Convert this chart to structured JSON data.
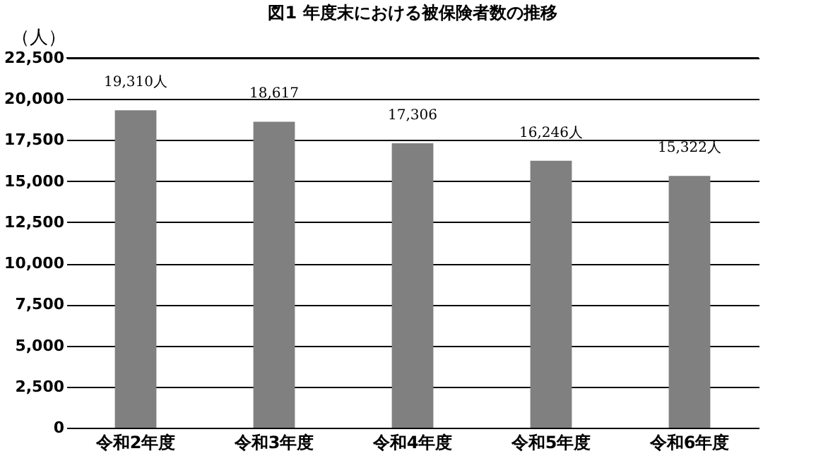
{
  "chart_data": {
    "type": "bar",
    "title": "図1  年度末における被保険者数の推移",
    "ylabel": "（人）",
    "categories": [
      "令和2年度",
      "令和3年度",
      "令和4年度",
      "令和5年度",
      "令和6年度"
    ],
    "values": [
      19310,
      18617,
      17306,
      16246,
      15322
    ],
    "value_labels": [
      "19,310人",
      "18,617",
      "17,306",
      "16,246人",
      "15,322人"
    ],
    "color": "#808080",
    "ylim": [
      0,
      22500
    ],
    "yticks": [
      0,
      {
        "value": 2500,
        "label": "2,500"
      },
      {
        "value": 5000,
        "label": "5,000"
      },
      {
        "value": 7500,
        "label": "7,500"
      },
      {
        "value": 10000,
        "label": "10,000"
      },
      {
        "value": 12500,
        "label": "12,500"
      },
      {
        "value": 15000,
        "label": "15,000"
      },
      {
        "value": 17500,
        "label": "17,500"
      },
      {
        "value": 20000,
        "label": "20,000"
      },
      {
        "value": 22500,
        "label": "22,500"
      }
    ],
    "grid": "y"
  }
}
